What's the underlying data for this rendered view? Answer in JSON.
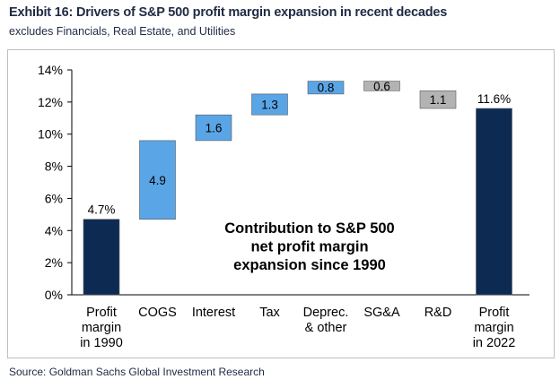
{
  "title": "Exhibit 16: Drivers of S&P 500 profit margin expansion in recent decades",
  "subtitle": "excludes Financials, Real Estate, and Utilities",
  "source": "Source: Goldman Sachs Global Investment Research",
  "chart_data": {
    "type": "waterfall",
    "ylim": [
      0,
      14
    ],
    "yticks": [
      "0%",
      "2%",
      "4%",
      "6%",
      "8%",
      "10%",
      "12%",
      "14%"
    ],
    "annotation": [
      "Contribution to S&P 500",
      "net profit margin",
      "expansion since 1990"
    ],
    "bars": [
      {
        "category": [
          "Profit",
          "margin",
          "in 1990"
        ],
        "kind": "total",
        "start": 0,
        "end": 4.7,
        "label": "4.7%",
        "color": "#0d2b52"
      },
      {
        "category": [
          "COGS"
        ],
        "kind": "up",
        "start": 4.7,
        "end": 9.6,
        "label": "4.9",
        "color": "#5aa5e6"
      },
      {
        "category": [
          "Interest"
        ],
        "kind": "up",
        "start": 9.6,
        "end": 11.2,
        "label": "1.6",
        "color": "#5aa5e6"
      },
      {
        "category": [
          "Tax"
        ],
        "kind": "up",
        "start": 11.2,
        "end": 12.5,
        "label": "1.3",
        "color": "#5aa5e6"
      },
      {
        "category": [
          "Deprec.",
          "& other"
        ],
        "kind": "up",
        "start": 12.5,
        "end": 13.3,
        "label": "0.8",
        "color": "#5aa5e6"
      },
      {
        "category": [
          "SG&A"
        ],
        "kind": "down",
        "start": 13.3,
        "end": 12.7,
        "label": "0.6",
        "color": "#b3b3b3"
      },
      {
        "category": [
          "R&D"
        ],
        "kind": "down",
        "start": 12.7,
        "end": 11.6,
        "label": "1.1",
        "color": "#b3b3b3"
      },
      {
        "category": [
          "Profit",
          "margin",
          "in 2022"
        ],
        "kind": "total",
        "start": 0,
        "end": 11.6,
        "label": "11.6%",
        "color": "#0d2b52"
      }
    ]
  }
}
